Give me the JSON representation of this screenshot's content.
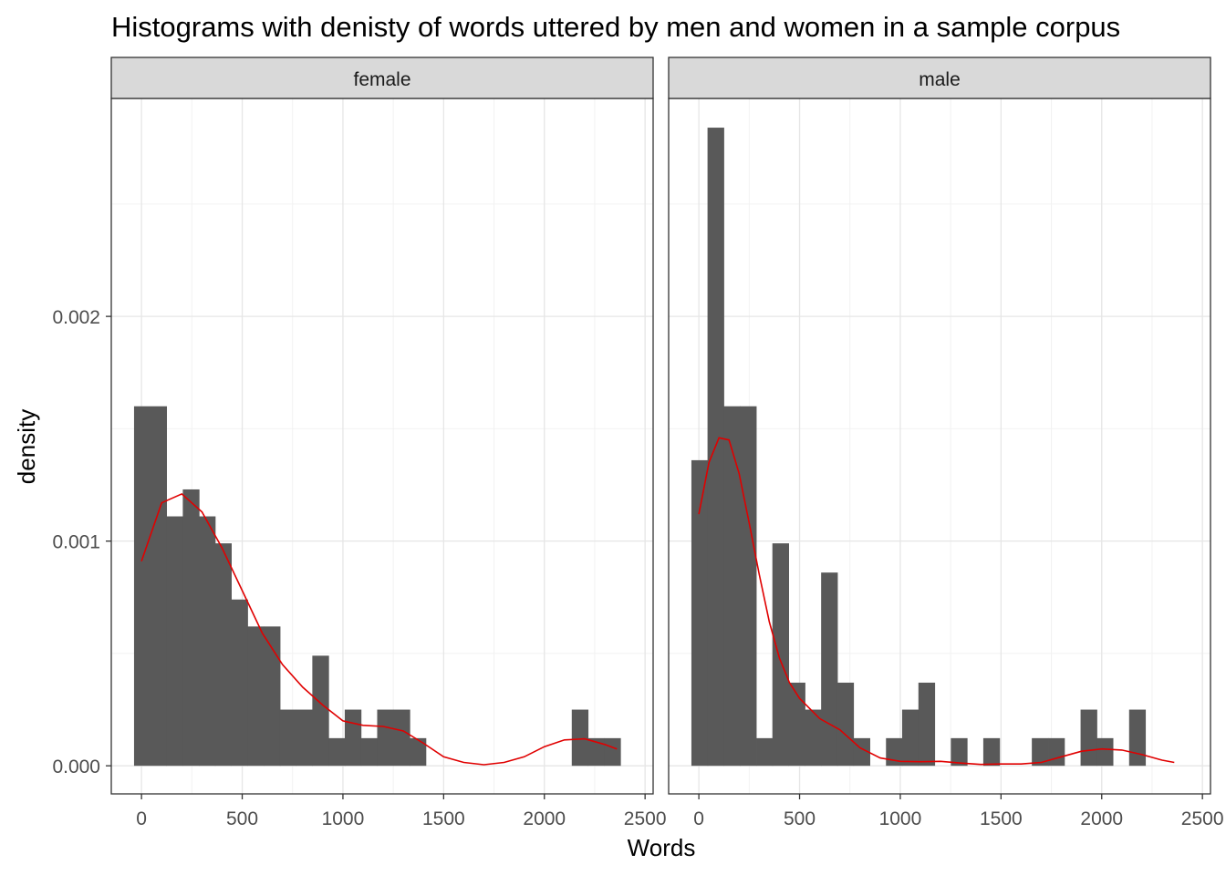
{
  "chart_data": {
    "type": "bar",
    "title": "Histograms with denisty of words uttered by men and women in a sample corpus",
    "xlabel": "Words",
    "ylabel": "density",
    "xlim": [
      -150,
      2540
    ],
    "ylim": [
      -0.000125,
      0.00297
    ],
    "x_ticks": [
      0,
      500,
      1000,
      1500,
      2000,
      2500
    ],
    "x_tick_labels": [
      "0",
      "500",
      "1000",
      "1500",
      "2000",
      "2500"
    ],
    "y_ticks": [
      0,
      0.001,
      0.002
    ],
    "y_tick_labels": [
      "0.000",
      "0.001",
      "0.002"
    ],
    "grid": true,
    "bar_color": "#595959",
    "density_color": "#e00000",
    "panels": [
      {
        "name": "female",
        "bin_start": -37,
        "bin_width": 161,
        "bins": [
          {
            "x": 0,
            "value": 0.0016
          },
          {
            "x": 161,
            "value": 0.00111
          },
          {
            "x": 242,
            "value": 0.00123
          },
          {
            "x": 322,
            "value": 0.00111
          },
          {
            "x": 402,
            "value": 0.00099
          },
          {
            "x": 483,
            "value": 0.00074
          },
          {
            "x": 563,
            "value": 0.00062
          },
          {
            "x": 644,
            "value": 0.00062
          },
          {
            "x": 724,
            "value": 0.00025
          },
          {
            "x": 805,
            "value": 0.00025
          },
          {
            "x": 885,
            "value": 0.00049
          },
          {
            "x": 966,
            "value": 0.000123
          },
          {
            "x": 1046,
            "value": 0.00025
          },
          {
            "x": 1127,
            "value": 0.000123
          },
          {
            "x": 1207,
            "value": 0.00025
          },
          {
            "x": 1288,
            "value": 0.00025
          },
          {
            "x": 1368,
            "value": 0.000123
          },
          {
            "x": 2173,
            "value": 0.00025
          },
          {
            "x": 2253,
            "value": 0.000123
          },
          {
            "x": 2334,
            "value": 0.000123
          }
        ],
        "bin_widths_note": "",
        "density_x": [
          0,
          100,
          200,
          300,
          400,
          500,
          600,
          700,
          800,
          900,
          1000,
          1100,
          1200,
          1300,
          1400,
          1500,
          1600,
          1700,
          1800,
          1900,
          2000,
          2100,
          2200,
          2300,
          2360
        ],
        "density_y": [
          0.00091,
          0.00117,
          0.00121,
          0.00113,
          0.00097,
          0.00078,
          0.00059,
          0.00045,
          0.00035,
          0.00027,
          0.0002,
          0.00018,
          0.000175,
          0.000155,
          0.0001,
          4e-05,
          1.5e-05,
          5e-06,
          1.5e-05,
          4e-05,
          8.5e-05,
          0.000115,
          0.00012,
          9.5e-05,
          7.5e-05
        ]
      },
      {
        "name": "male",
        "bin_start": -37,
        "bin_width": 80.5,
        "bins": [
          {
            "x": 0,
            "value": 0.00136
          },
          {
            "x": 80,
            "value": 0.00284
          },
          {
            "x": 161,
            "value": 0.0016
          },
          {
            "x": 241,
            "value": 0.0016
          },
          {
            "x": 322,
            "value": 0.000123
          },
          {
            "x": 402,
            "value": 0.00099
          },
          {
            "x": 483,
            "value": 0.00037
          },
          {
            "x": 563,
            "value": 0.00025
          },
          {
            "x": 644,
            "value": 0.00086
          },
          {
            "x": 724,
            "value": 0.00037
          },
          {
            "x": 805,
            "value": 0.000123
          },
          {
            "x": 966,
            "value": 0.000123
          },
          {
            "x": 1046,
            "value": 0.00025
          },
          {
            "x": 1127,
            "value": 0.00037
          },
          {
            "x": 1288,
            "value": 0.000123
          },
          {
            "x": 1449,
            "value": 0.000123
          },
          {
            "x": 1690,
            "value": 0.000123
          },
          {
            "x": 1771,
            "value": 0.000123
          },
          {
            "x": 1932,
            "value": 0.00025
          },
          {
            "x": 2012,
            "value": 0.000123
          },
          {
            "x": 2173,
            "value": 0.00025
          }
        ],
        "density_x": [
          0,
          50,
          100,
          150,
          200,
          250,
          300,
          350,
          400,
          450,
          500,
          600,
          700,
          800,
          900,
          1000,
          1100,
          1200,
          1300,
          1400,
          1500,
          1600,
          1700,
          1800,
          1900,
          2000,
          2100,
          2200,
          2300,
          2360
        ],
        "density_y": [
          0.00112,
          0.00135,
          0.00146,
          0.00145,
          0.0013,
          0.00108,
          0.00085,
          0.00064,
          0.00048,
          0.00037,
          0.0003,
          0.00021,
          0.00016,
          8e-05,
          3.5e-05,
          2e-05,
          1.8e-05,
          2e-05,
          1.2e-05,
          6e-06,
          8e-06,
          8e-06,
          1.5e-05,
          4e-05,
          6.5e-05,
          7.5e-05,
          7e-05,
          5e-05,
          2.5e-05,
          1.5e-05
        ]
      }
    ]
  }
}
